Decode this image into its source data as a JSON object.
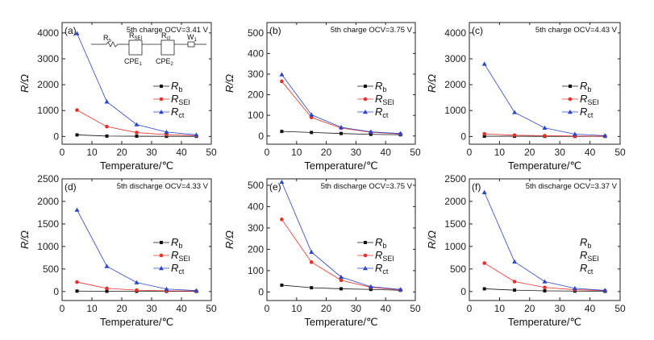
{
  "figure": {
    "y_axis_label": "R/Ω"
  },
  "circuit": {
    "labels": [
      {
        "main": "R",
        "sub": "b"
      },
      {
        "main": "R",
        "sub": "SEI"
      },
      {
        "main": "R",
        "sub": "ct"
      },
      {
        "main": "W",
        "sub": "1"
      },
      {
        "main": "CPE",
        "sub": "1"
      },
      {
        "main": "CPE",
        "sub": "2"
      }
    ]
  },
  "colors": {
    "Rb": "#111111",
    "RSEI": "#e8302a",
    "Rct": "#2b45c9"
  },
  "chart_data": [
    {
      "type": "line",
      "panel": "(a)",
      "note": "5th charge OCV=3.41 V",
      "xlabel": "Temperature/℃",
      "ylabel": "R/Ω",
      "xlim": [
        0,
        50
      ],
      "ylim": [
        -300,
        4400
      ],
      "xticks": [
        0,
        10,
        20,
        30,
        40,
        50
      ],
      "yticks": [
        0,
        1000,
        2000,
        3000,
        4000
      ],
      "x": [
        5,
        15,
        25,
        35,
        45
      ],
      "series": [
        {
          "key": "Rb",
          "name": "R",
          "sub": "b",
          "values": [
            60,
            15,
            10,
            5,
            5
          ]
        },
        {
          "key": "RSEI",
          "name": "R",
          "sub": "SEI",
          "values": [
            1020,
            380,
            150,
            70,
            30
          ]
        },
        {
          "key": "Rct",
          "name": "R",
          "sub": "ct",
          "values": [
            3980,
            1340,
            460,
            170,
            60
          ]
        }
      ],
      "legend": "right"
    },
    {
      "type": "line",
      "panel": "(b)",
      "note": "5th charge OCV=3.75 V",
      "xlabel": "Temperature/℃",
      "ylabel": "R/Ω",
      "xlim": [
        0,
        50
      ],
      "ylim": [
        -40,
        550
      ],
      "xticks": [
        0,
        10,
        20,
        30,
        40,
        50
      ],
      "yticks": [
        0,
        100,
        200,
        300,
        400,
        500
      ],
      "x": [
        5,
        15,
        25,
        35,
        45
      ],
      "series": [
        {
          "key": "Rb",
          "name": "R",
          "sub": "b",
          "values": [
            22,
            17,
            12,
            8,
            6
          ]
        },
        {
          "key": "RSEI",
          "name": "R",
          "sub": "SEI",
          "values": [
            265,
            90,
            38,
            18,
            10
          ]
        },
        {
          "key": "Rct",
          "name": "R",
          "sub": "ct",
          "values": [
            298,
            103,
            42,
            20,
            12
          ]
        }
      ],
      "legend": "right"
    },
    {
      "type": "line",
      "panel": "(c)",
      "note": "5th charge OCV=4.43 V",
      "xlabel": "Temperature/℃",
      "ylabel": "R/Ω",
      "xlim": [
        0,
        50
      ],
      "ylim": [
        -300,
        4400
      ],
      "xticks": [
        0,
        10,
        20,
        30,
        40,
        50
      ],
      "yticks": [
        0,
        1000,
        2000,
        3000,
        4000
      ],
      "x": [
        5,
        15,
        25,
        35,
        45
      ],
      "series": [
        {
          "key": "Rb",
          "name": "R",
          "sub": "b",
          "values": [
            10,
            10,
            5,
            5,
            5
          ]
        },
        {
          "key": "RSEI",
          "name": "R",
          "sub": "SEI",
          "values": [
            100,
            50,
            30,
            20,
            10
          ]
        },
        {
          "key": "Rct",
          "name": "R",
          "sub": "ct",
          "values": [
            2800,
            930,
            330,
            90,
            30
          ]
        }
      ],
      "legend": "right"
    },
    {
      "type": "line",
      "panel": "(d)",
      "note": "5th discharge OCV=4.33 V",
      "xlabel": "Temperature/℃",
      "ylabel": "R/Ω",
      "xlim": [
        0,
        50
      ],
      "ylim": [
        -200,
        2500
      ],
      "xticks": [
        0,
        10,
        20,
        30,
        40,
        50
      ],
      "yticks": [
        0,
        500,
        1000,
        1500,
        2000,
        2500
      ],
      "x": [
        5,
        15,
        25,
        35,
        45
      ],
      "series": [
        {
          "key": "Rb",
          "name": "R",
          "sub": "b",
          "values": [
            10,
            5,
            5,
            3,
            3
          ]
        },
        {
          "key": "RSEI",
          "name": "R",
          "sub": "SEI",
          "values": [
            210,
            70,
            30,
            15,
            10
          ]
        },
        {
          "key": "Rct",
          "name": "R",
          "sub": "ct",
          "values": [
            1810,
            560,
            200,
            55,
            20
          ]
        }
      ],
      "legend": "right"
    },
    {
      "type": "line",
      "panel": "(e)",
      "note": "5th discharge OCV=3.75 V",
      "xlabel": "Temperature/℃",
      "ylabel": "R/Ω",
      "xlim": [
        0,
        50
      ],
      "ylim": [
        -40,
        530
      ],
      "xticks": [
        0,
        10,
        20,
        30,
        40,
        50
      ],
      "yticks": [
        0,
        100,
        200,
        300,
        400,
        500
      ],
      "x": [
        5,
        15,
        25,
        35,
        45
      ],
      "series": [
        {
          "key": "Rb",
          "name": "R",
          "sub": "b",
          "values": [
            32,
            20,
            15,
            12,
            8
          ]
        },
        {
          "key": "RSEI",
          "name": "R",
          "sub": "SEI",
          "values": [
            340,
            140,
            55,
            22,
            10
          ]
        },
        {
          "key": "Rct",
          "name": "R",
          "sub": "ct",
          "values": [
            515,
            187,
            70,
            25,
            12
          ]
        }
      ],
      "legend": "right"
    },
    {
      "type": "line",
      "panel": "(f)",
      "note": "5th discharge OCV=3.37 V",
      "xlabel": "Temperature/℃",
      "ylabel": "R/Ω",
      "xlim": [
        0,
        50
      ],
      "ylim": [
        -200,
        2500
      ],
      "xticks": [
        0,
        10,
        20,
        30,
        40,
        50
      ],
      "yticks": [
        0,
        500,
        1000,
        1500,
        2000,
        2500
      ],
      "x": [
        5,
        15,
        25,
        35,
        45
      ],
      "series": [
        {
          "key": "Rb",
          "name": "R",
          "sub": "b",
          "values": [
            60,
            30,
            15,
            10,
            5
          ]
        },
        {
          "key": "RSEI",
          "name": "R",
          "sub": "SEI",
          "values": [
            630,
            220,
            90,
            40,
            20
          ]
        },
        {
          "key": "Rct",
          "name": "R",
          "sub": "ct",
          "values": [
            2200,
            660,
            220,
            70,
            25
          ]
        }
      ],
      "legend": "right-text"
    }
  ]
}
